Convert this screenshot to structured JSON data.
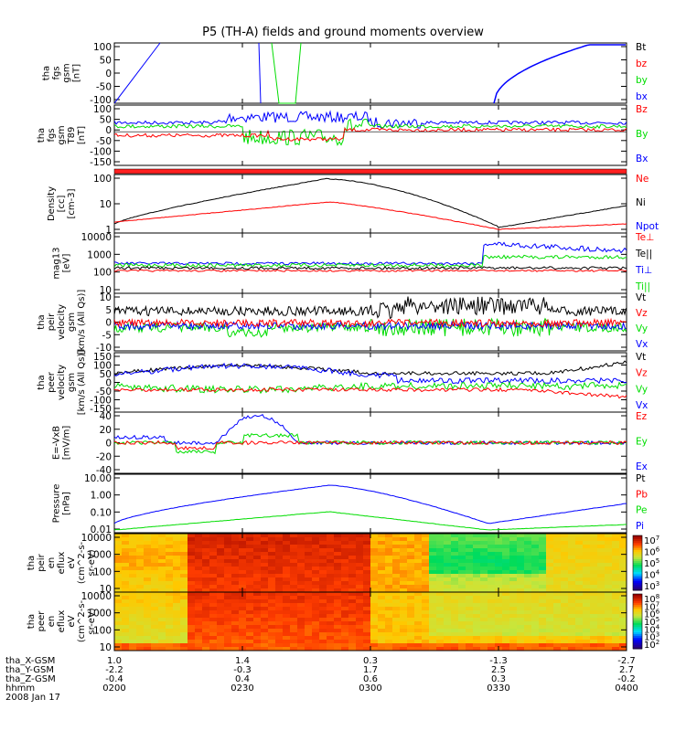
{
  "title": "P5 (TH-A) fields and ground moments overview",
  "x_axis": {
    "tick_labels": [
      "0200",
      "0230",
      "0300",
      "0330",
      "0400"
    ],
    "rows": [
      {
        "name": "tha_X-GSM",
        "values": [
          "1.0",
          "1.4",
          "0.3",
          "-1.3",
          "-2.7"
        ]
      },
      {
        "name": "tha_Y-GSM",
        "values": [
          "-2.2",
          "-0.3",
          "1.7",
          "2.5",
          "2.7"
        ]
      },
      {
        "name": "tha_Z-GSM",
        "values": [
          "-0.4",
          "0.4",
          "0.6",
          "0.3",
          "-0.2"
        ]
      },
      {
        "name": "hhmm",
        "values": [
          "0200",
          "0230",
          "0300",
          "0330",
          "0400"
        ]
      }
    ],
    "date": "2008 Jan 17"
  },
  "colors": {
    "black": "#000000",
    "red": "#ff0000",
    "green": "#00dd00",
    "blue": "#0000ff"
  },
  "chart_data": [
    {
      "type": "line",
      "ylabel": [
        "tha",
        "fgs",
        "gsm",
        "[nT]"
      ],
      "yticks": [
        "100",
        "50",
        "0",
        "-50",
        "-100"
      ],
      "ylim": [
        -100,
        100
      ],
      "legend": [
        {
          "label": "Bt",
          "color": "#000000"
        },
        {
          "label": "bz",
          "color": "#ff0000"
        },
        {
          "label": "by",
          "color": "#00dd00"
        },
        {
          "label": "bx",
          "color": "#0000ff"
        }
      ]
    },
    {
      "type": "line",
      "ylabel": [
        "tha",
        "fgs",
        "gsm",
        "T89",
        "[nT]"
      ],
      "yticks": [
        "100",
        "50",
        "0",
        "-50",
        "-100",
        "-150"
      ],
      "ylim": [
        -170,
        100
      ],
      "legend": [
        {
          "label": "Bz",
          "color": "#ff0000"
        },
        {
          "label": "By",
          "color": "#00dd00"
        },
        {
          "label": "Bx",
          "color": "#0000ff"
        }
      ]
    },
    {
      "type": "line",
      "ylabel": [
        "Density",
        "[cc]",
        "[cm-3]"
      ],
      "yticks": [
        "100",
        "10",
        "1"
      ],
      "scale": "log",
      "legend": [
        {
          "label": "Ne",
          "color": "#ff0000"
        },
        {
          "label": "Ni",
          "color": "#000000"
        },
        {
          "label": "Npot",
          "color": "#0000ff"
        }
      ]
    },
    {
      "type": "line",
      "ylabel": [
        "mag13",
        "[eV]"
      ],
      "yticks": [
        "10000",
        "1000",
        "100",
        "10"
      ],
      "scale": "log",
      "legend": [
        {
          "label": "Te⊥",
          "color": "#ff0000"
        },
        {
          "label": "Te||",
          "color": "#000000"
        },
        {
          "label": "Ti⊥",
          "color": "#0000ff"
        },
        {
          "label": "Ti||",
          "color": "#00dd00"
        }
      ]
    },
    {
      "type": "line",
      "ylabel": [
        "tha",
        "peir",
        "velocity",
        "gsm",
        "[km/s (All Qs)]"
      ],
      "yticks": [
        "10",
        "5",
        "0",
        "-5",
        "-10"
      ],
      "ylim": [
        -10,
        10
      ],
      "legend": [
        {
          "label": "Vt",
          "color": "#000000"
        },
        {
          "label": "Vz",
          "color": "#ff0000"
        },
        {
          "label": "Vy",
          "color": "#00dd00"
        },
        {
          "label": "Vx",
          "color": "#0000ff"
        }
      ]
    },
    {
      "type": "line",
      "ylabel": [
        "tha",
        "peer",
        "velocity",
        "gsm",
        "[km/s (All Qs)]"
      ],
      "yticks": [
        "150",
        "100",
        "50",
        "0",
        "-50",
        "-100",
        "-150"
      ],
      "ylim": [
        -170,
        170
      ],
      "legend": [
        {
          "label": "Vt",
          "color": "#000000"
        },
        {
          "label": "Vz",
          "color": "#ff0000"
        },
        {
          "label": "Vy",
          "color": "#00dd00"
        },
        {
          "label": "Vx",
          "color": "#0000ff"
        }
      ]
    },
    {
      "type": "line",
      "ylabel": [
        "E=-VxB",
        "[mV/m]"
      ],
      "yticks": [
        "40",
        "20",
        "0",
        "-20",
        "-40"
      ],
      "ylim": [
        -45,
        45
      ],
      "legend": [
        {
          "label": "Ez",
          "color": "#ff0000"
        },
        {
          "label": "Ey",
          "color": "#00dd00"
        },
        {
          "label": "Ex",
          "color": "#0000ff"
        }
      ]
    },
    {
      "type": "line",
      "ylabel": [
        "Pressure",
        "[nPa]"
      ],
      "yticks": [
        "10.00",
        "1.00",
        "0.10",
        "0.01"
      ],
      "scale": "log",
      "legend": [
        {
          "label": "Pt",
          "color": "#000000"
        },
        {
          "label": "Pb",
          "color": "#ff0000"
        },
        {
          "label": "Pe",
          "color": "#00dd00"
        },
        {
          "label": "Pi",
          "color": "#0000ff"
        }
      ]
    },
    {
      "type": "heatmap",
      "ylabel": [
        "tha",
        "peir",
        "en",
        "eflux",
        "eV",
        "(cm^2-s-",
        "sr-eV)"
      ],
      "yticks": [
        "10000",
        "1000",
        "100",
        "10"
      ],
      "colorbar": [
        "10^7",
        "10^6",
        "10^5",
        "10^4",
        "10^3"
      ]
    },
    {
      "type": "heatmap",
      "ylabel": [
        "tha",
        "peer",
        "en",
        "eflux",
        "eV",
        "(cm^2-s-",
        "sr-eV)"
      ],
      "yticks": [
        "10000",
        "1000",
        "100",
        "10"
      ],
      "colorbar": [
        "10^8",
        "10^7",
        "10^6",
        "10^5",
        "10^4",
        "10^3",
        "10^2"
      ]
    }
  ]
}
